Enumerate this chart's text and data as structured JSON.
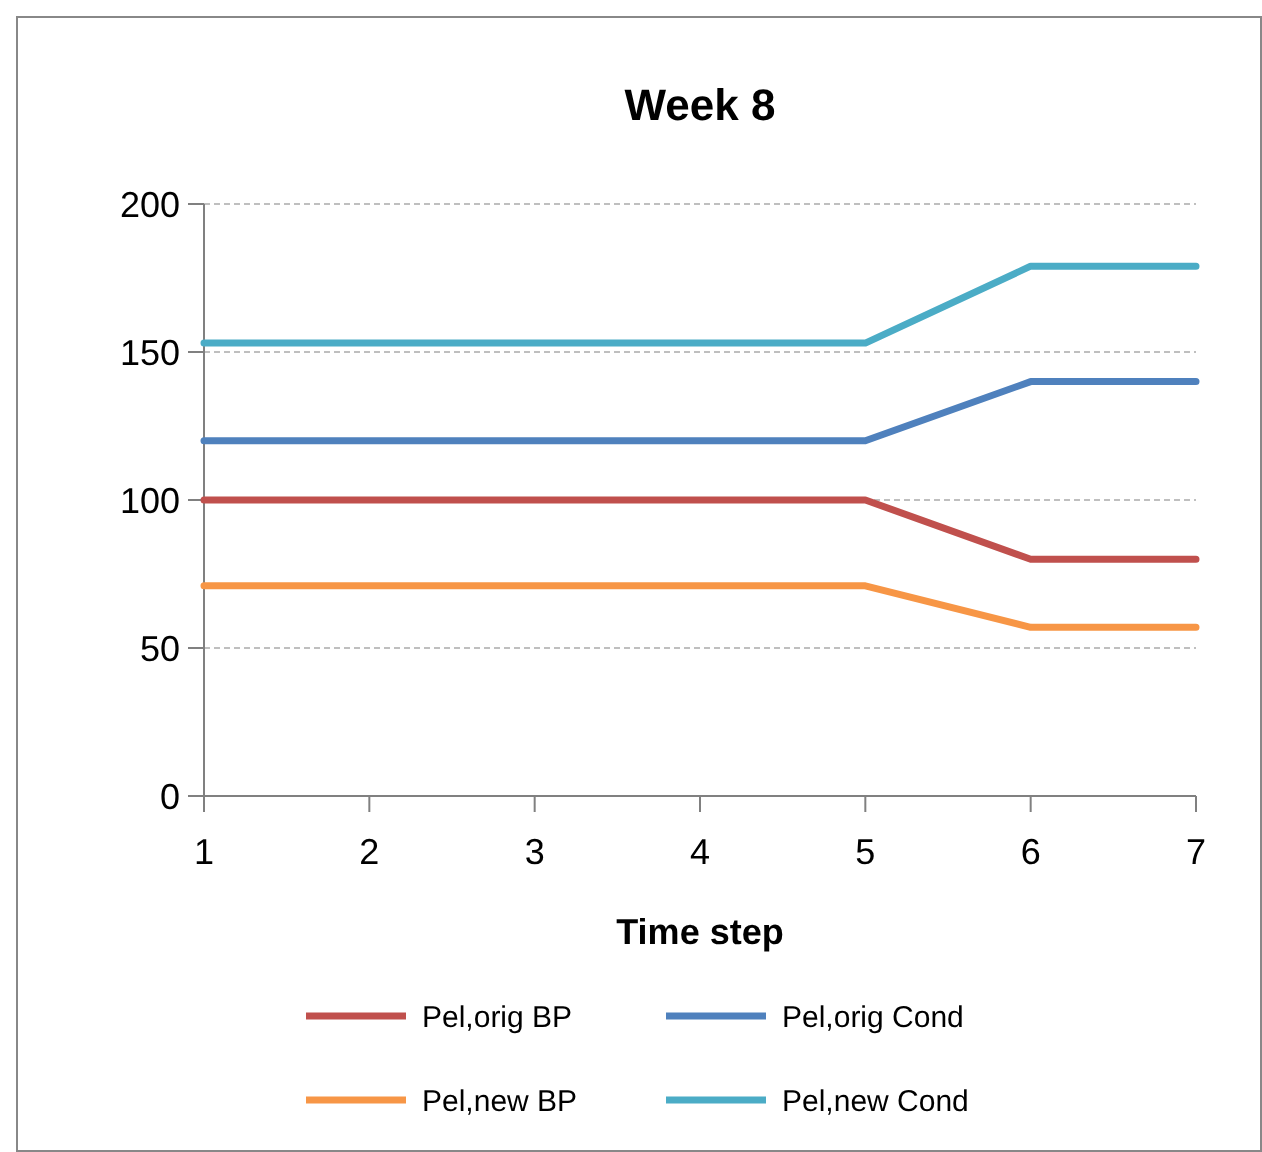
{
  "chart_data": {
    "type": "line",
    "title": "Week 8",
    "xlabel": "Time step",
    "x": [
      1,
      2,
      3,
      4,
      5,
      6,
      7
    ],
    "xlim": [
      1,
      7
    ],
    "xticks": [
      1,
      2,
      3,
      4,
      5,
      6,
      7
    ],
    "ylim": [
      0,
      200
    ],
    "yticks": [
      0,
      50,
      100,
      150,
      200
    ],
    "grid": "y",
    "legend": "bottom",
    "marker": "none",
    "line_style": "solid",
    "series": [
      {
        "name": "Pel,orig BP",
        "color": "#c0504d",
        "values": [
          100,
          100,
          100,
          100,
          100,
          80,
          80
        ]
      },
      {
        "name": "Pel,orig Cond",
        "color": "#4f81bd",
        "values": [
          120,
          120,
          120,
          120,
          120,
          140,
          140
        ]
      },
      {
        "name": "Pel,new BP",
        "color": "#f79646",
        "values": [
          71,
          71,
          71,
          71,
          71,
          57,
          57
        ]
      },
      {
        "name": "Pel,new Cond",
        "color": "#4bacc6",
        "values": [
          153,
          153,
          153,
          153,
          153,
          179,
          179
        ]
      }
    ]
  }
}
